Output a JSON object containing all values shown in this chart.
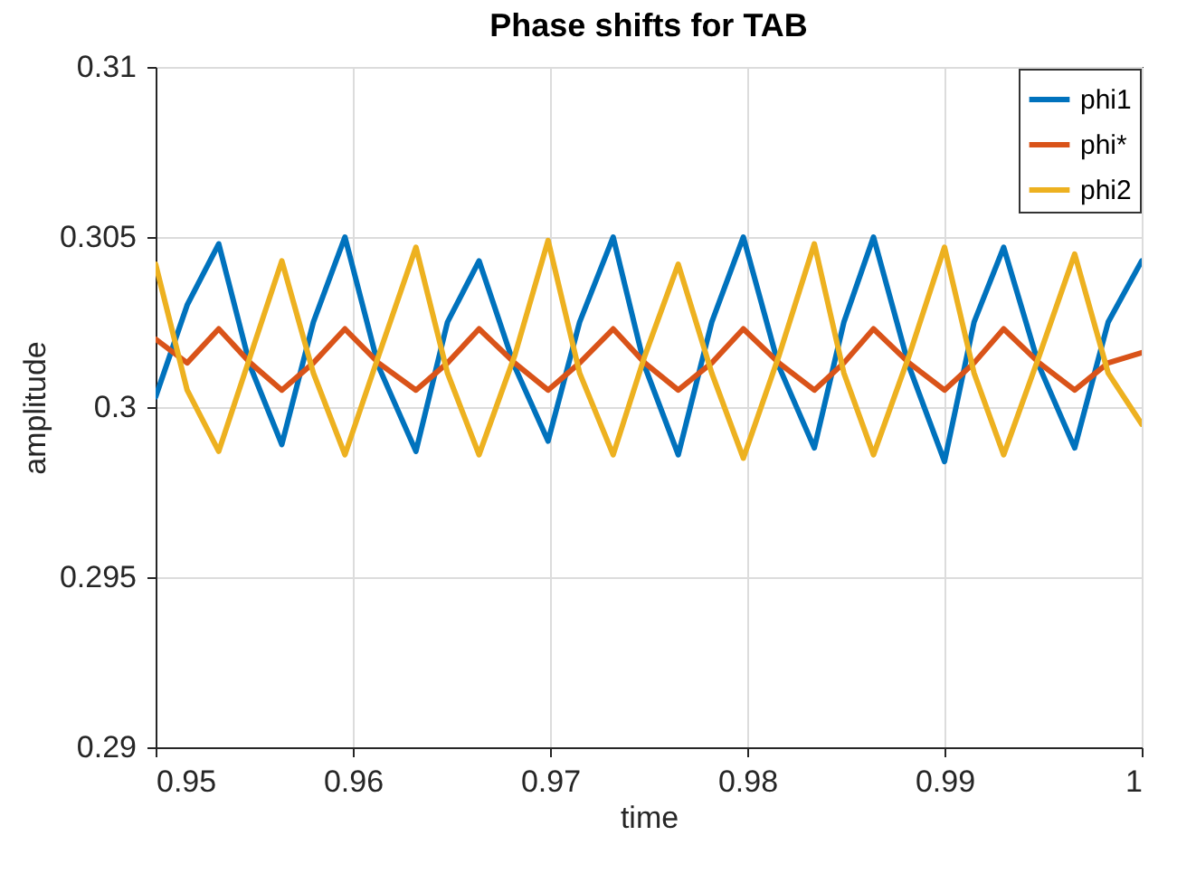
{
  "chart_data": {
    "type": "line",
    "title": "Phase shifts for TAB",
    "xlabel": "time",
    "ylabel": "amplitude",
    "x": [
      0.95,
      0.9516,
      0.9532,
      0.9548,
      0.9564,
      0.958,
      0.9596,
      0.9613,
      0.9632,
      0.9648,
      0.9664,
      0.9682,
      0.9699,
      0.9715,
      0.9732,
      0.9748,
      0.9765,
      0.9782,
      0.9798,
      0.9816,
      0.9834,
      0.9849,
      0.9864,
      0.9882,
      0.99,
      0.9915,
      0.993,
      0.9948,
      0.9966,
      0.9983,
      1.0
    ],
    "series": [
      {
        "name": "phi1",
        "color": "#0072bd",
        "values": [
          0.3003,
          0.303,
          0.3048,
          0.3012,
          0.2989,
          0.3025,
          0.305,
          0.3012,
          0.2987,
          0.3025,
          0.3043,
          0.3012,
          0.299,
          0.3025,
          0.305,
          0.3012,
          0.2986,
          0.3025,
          0.305,
          0.3012,
          0.2988,
          0.3025,
          0.305,
          0.3012,
          0.2984,
          0.3025,
          0.3047,
          0.3012,
          0.2988,
          0.3025,
          0.3043
        ]
      },
      {
        "name": "phi*",
        "color": "#d95319",
        "values": [
          0.302,
          0.3013,
          0.3023,
          0.3013,
          0.3005,
          0.3013,
          0.3023,
          0.3013,
          0.3005,
          0.3013,
          0.3023,
          0.3013,
          0.3005,
          0.3013,
          0.3023,
          0.3013,
          0.3005,
          0.3013,
          0.3023,
          0.3013,
          0.3005,
          0.3013,
          0.3023,
          0.3013,
          0.3005,
          0.3013,
          0.3023,
          0.3013,
          0.3005,
          0.3013,
          0.3016
        ]
      },
      {
        "name": "phi2",
        "color": "#edb120",
        "values": [
          0.3042,
          0.3005,
          0.2987,
          0.3015,
          0.3043,
          0.301,
          0.2986,
          0.3015,
          0.3047,
          0.301,
          0.2986,
          0.3015,
          0.3049,
          0.301,
          0.2986,
          0.3015,
          0.3042,
          0.301,
          0.2985,
          0.3015,
          0.3048,
          0.301,
          0.2986,
          0.3015,
          0.3047,
          0.301,
          0.2986,
          0.3015,
          0.3045,
          0.301,
          0.2995
        ]
      }
    ],
    "xlim": [
      0.95,
      1.0
    ],
    "xticks": [
      0.95,
      0.96,
      0.97,
      0.98,
      0.99,
      1
    ],
    "ylim": [
      0.29,
      0.31
    ],
    "yticks": [
      0.29,
      0.295,
      0.3,
      0.305,
      0.31
    ],
    "grid": true,
    "legend": "top right",
    "marker": "none",
    "line_style": "solid"
  }
}
